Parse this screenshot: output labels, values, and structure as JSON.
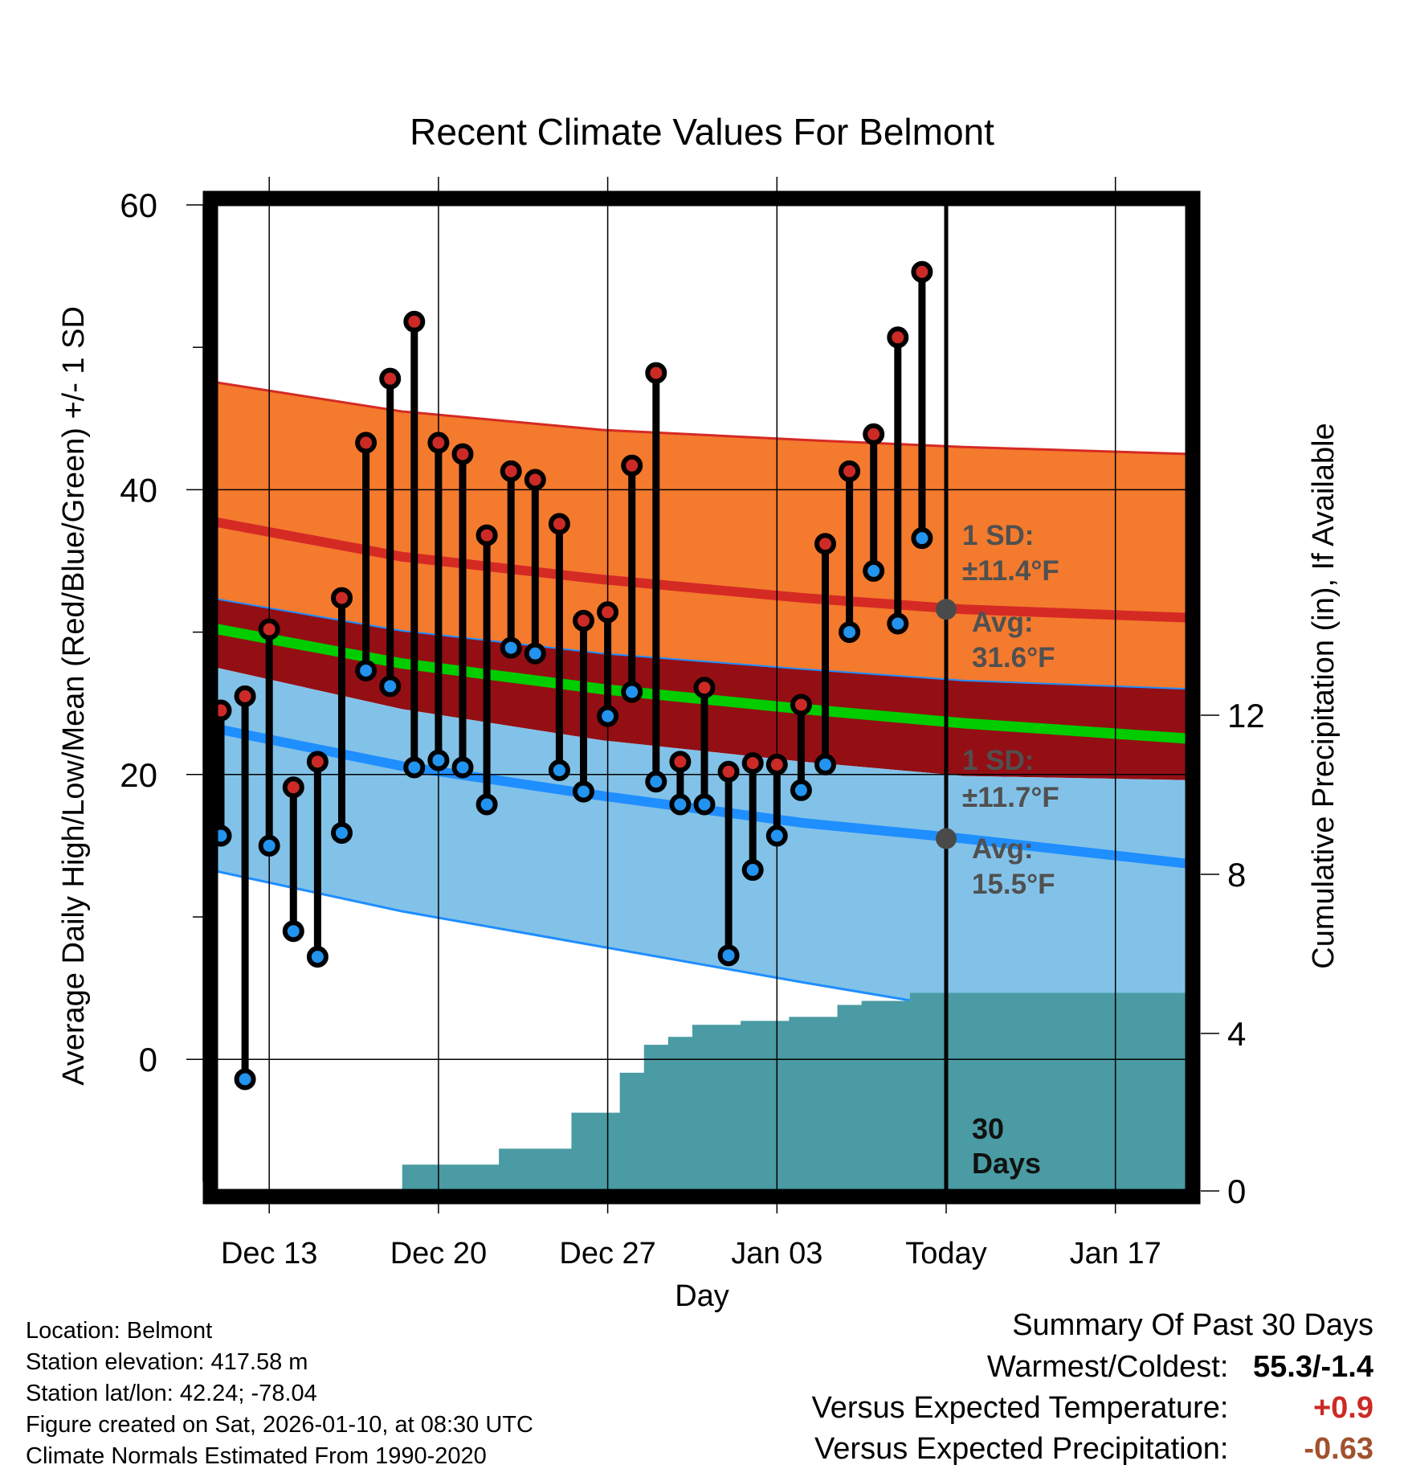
{
  "chart_data": {
    "type": "line",
    "title": "Recent Climate Values For Belmont",
    "xlabel": "Day",
    "ylabel": "Average Daily High/Low/Mean (Red/Blue/Green) +/- 1 SD",
    "y2label": "Cumulative Precipitation (in), If Available",
    "x_ticks": [
      "Dec 13",
      "Dec 20",
      "Dec 27",
      "Jan 03",
      "Today",
      "Jan 17"
    ],
    "y_ticks": [
      "60",
      "40",
      "20",
      "0"
    ],
    "y_range": [
      -9,
      60
    ],
    "y2_ticks": [
      "0",
      "4",
      "8",
      "12"
    ],
    "y2_range": [
      0,
      25
    ],
    "days_window": 30,
    "window_label": "30 Days",
    "daily": {
      "highs": [
        24.5,
        25.5,
        30.2,
        19.1,
        20.9,
        32.4,
        43.3,
        47.8,
        51.8,
        43.3,
        42.5,
        36.8,
        41.3,
        40.7,
        37.6,
        30.8,
        31.4,
        41.7,
        48.2,
        20.9,
        26.1,
        20.2,
        20.8,
        20.7,
        24.9,
        36.2,
        41.3,
        43.9,
        50.7,
        55.3
      ],
      "lows": [
        15.7,
        -1.4,
        15.0,
        9.0,
        7.2,
        15.9,
        27.3,
        26.2,
        20.5,
        21.0,
        20.5,
        17.9,
        28.9,
        28.5,
        20.3,
        18.8,
        24.1,
        25.8,
        19.5,
        17.9,
        17.9,
        7.3,
        13.3,
        15.7,
        18.9,
        20.7,
        30.0,
        34.3,
        30.6,
        36.6
      ]
    },
    "normals": {
      "high_avg": [
        37.8,
        35.3,
        33.7,
        32.4,
        31.6,
        31.0
      ],
      "high_plus_sd": [
        47.6,
        45.5,
        44.2,
        43.5,
        43.0,
        42.5
      ],
      "mean_avg": [
        30.3,
        27.8,
        26.0,
        24.6,
        23.6,
        22.5
      ],
      "mean_upper": [
        32.4,
        30.1,
        28.5,
        27.4,
        26.6,
        26.0
      ],
      "mean_lower": [
        27.6,
        24.6,
        22.4,
        20.9,
        19.9,
        19.6
      ],
      "low_avg": [
        23.3,
        20.6,
        18.5,
        16.6,
        15.5,
        13.7
      ],
      "low_minus_sd": [
        13.3,
        10.4,
        7.9,
        5.4,
        3.5,
        1.8
      ]
    },
    "precip_cumulative": [
      0,
      0,
      0,
      0,
      0,
      0,
      0,
      0,
      0.8,
      0.8,
      0.8,
      0.8,
      1.2,
      1.2,
      1.2,
      2.1,
      2.1,
      3.1,
      3.8,
      4.0,
      4.3,
      4.3,
      4.4,
      4.4,
      4.5,
      4.5,
      4.8,
      4.9,
      4.9,
      5.1,
      5.1,
      5.1,
      5.1,
      5.1,
      5.1,
      5.1,
      5.1,
      5.1,
      5.1,
      5.1,
      5.1,
      5.1
    ],
    "annotations": {
      "high_sd_line1": "1 SD:",
      "high_sd_line2": "±11.4°F",
      "high_avg_line1": "Avg:",
      "high_avg_line2": "31.6°F",
      "high_avg_value": 31.6,
      "low_sd_line1": "1 SD:",
      "low_sd_line2": "±11.7°F",
      "low_avg_line1": "Avg:",
      "low_avg_line2": "15.5°F",
      "low_avg_value": 15.5
    },
    "colors": {
      "high_band": "#f47a2e",
      "high_line": "#d52a24",
      "mean_band": "#930f14",
      "mean_line": "#00cc00",
      "low_band": "#82c2e8",
      "low_line": "#1f8eff",
      "precip": "#4a9ba3",
      "high_point": "#cc2a26",
      "low_point": "#2293ee",
      "annotation": "#505050"
    }
  },
  "info": {
    "location": "Location: Belmont",
    "elevation": "Station elevation: 417.58 m",
    "latlon": "Station lat/lon: 42.24; -78.04",
    "created": "Figure created on Sat, 2026-01-10, at 08:30 UTC",
    "normals": "Climate Normals Estimated From 1990-2020"
  },
  "summary": {
    "title": "Summary Of Past 30 Days",
    "warm_cold_label": "Warmest/Coldest:",
    "warm_cold_value": "55.3/-1.4",
    "temp_label": "Versus Expected Temperature:",
    "temp_value": "+0.9",
    "temp_color": "#cc2a26",
    "precip_label": "Versus Expected Precipitation:",
    "precip_value": "-0.63",
    "precip_color": "#a0522d"
  }
}
